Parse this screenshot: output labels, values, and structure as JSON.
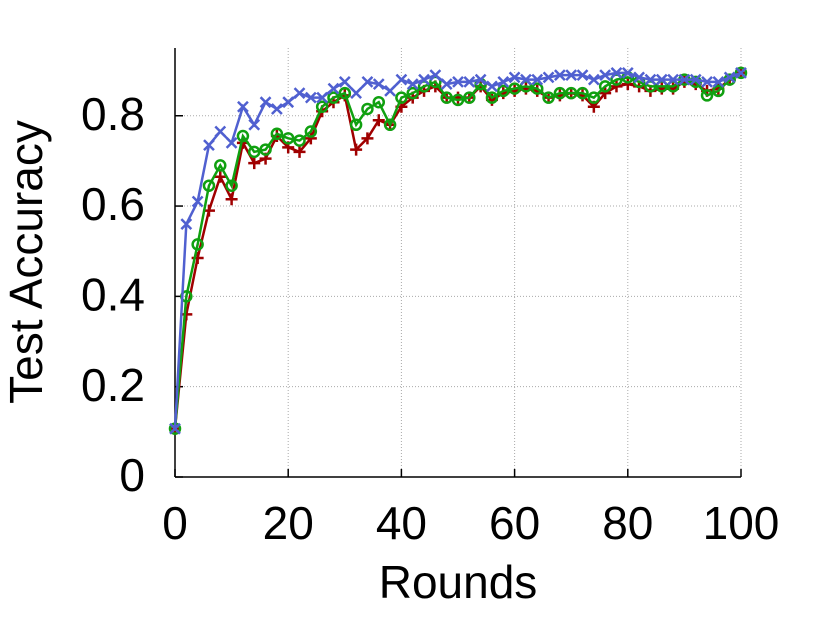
{
  "chart_data": {
    "type": "line",
    "xlabel": "Rounds",
    "ylabel": "Test Accuracy",
    "x": [
      0,
      2,
      4,
      6,
      8,
      10,
      12,
      14,
      16,
      18,
      20,
      22,
      24,
      26,
      28,
      30,
      32,
      34,
      36,
      38,
      40,
      42,
      44,
      46,
      48,
      50,
      52,
      54,
      56,
      58,
      60,
      62,
      64,
      66,
      68,
      70,
      72,
      74,
      76,
      78,
      80,
      82,
      84,
      86,
      88,
      90,
      92,
      94,
      96,
      98,
      100
    ],
    "series": [
      {
        "color": "#a00000",
        "marker": "plus",
        "values": [
          0.107,
          0.36,
          0.485,
          0.59,
          0.665,
          0.615,
          0.74,
          0.695,
          0.705,
          0.755,
          0.73,
          0.72,
          0.75,
          0.81,
          0.83,
          0.845,
          0.725,
          0.75,
          0.79,
          0.78,
          0.82,
          0.84,
          0.855,
          0.865,
          0.84,
          0.84,
          0.84,
          0.865,
          0.835,
          0.85,
          0.855,
          0.86,
          0.855,
          0.84,
          0.845,
          0.85,
          0.845,
          0.82,
          0.85,
          0.865,
          0.87,
          0.865,
          0.855,
          0.86,
          0.86,
          0.875,
          0.87,
          0.855,
          0.86,
          0.88,
          0.895
        ]
      },
      {
        "color": "#10a010",
        "marker": "circle",
        "values": [
          0.107,
          0.4,
          0.515,
          0.645,
          0.69,
          0.645,
          0.755,
          0.72,
          0.725,
          0.76,
          0.75,
          0.745,
          0.765,
          0.82,
          0.84,
          0.85,
          0.78,
          0.815,
          0.83,
          0.78,
          0.84,
          0.85,
          0.865,
          0.875,
          0.84,
          0.835,
          0.84,
          0.87,
          0.84,
          0.855,
          0.86,
          0.865,
          0.86,
          0.84,
          0.85,
          0.85,
          0.85,
          0.84,
          0.865,
          0.88,
          0.885,
          0.875,
          0.865,
          0.865,
          0.865,
          0.88,
          0.875,
          0.845,
          0.855,
          0.88,
          0.895
        ]
      },
      {
        "color": "#5060d0",
        "marker": "cross",
        "values": [
          0.107,
          0.56,
          0.61,
          0.735,
          0.765,
          0.74,
          0.82,
          0.78,
          0.83,
          0.815,
          0.83,
          0.85,
          0.84,
          0.84,
          0.86,
          0.875,
          0.85,
          0.875,
          0.87,
          0.855,
          0.88,
          0.87,
          0.88,
          0.89,
          0.87,
          0.875,
          0.875,
          0.88,
          0.865,
          0.875,
          0.885,
          0.88,
          0.88,
          0.885,
          0.89,
          0.89,
          0.89,
          0.88,
          0.89,
          0.895,
          0.895,
          0.885,
          0.88,
          0.88,
          0.88,
          0.88,
          0.88,
          0.875,
          0.875,
          0.885,
          0.895
        ]
      }
    ],
    "xlim": [
      0,
      100
    ],
    "ylim": [
      0,
      0.95
    ],
    "xticks": [
      0,
      20,
      40,
      60,
      80,
      100
    ],
    "yticks": [
      0,
      0.2,
      0.4,
      0.6,
      0.8
    ],
    "grid": true
  }
}
